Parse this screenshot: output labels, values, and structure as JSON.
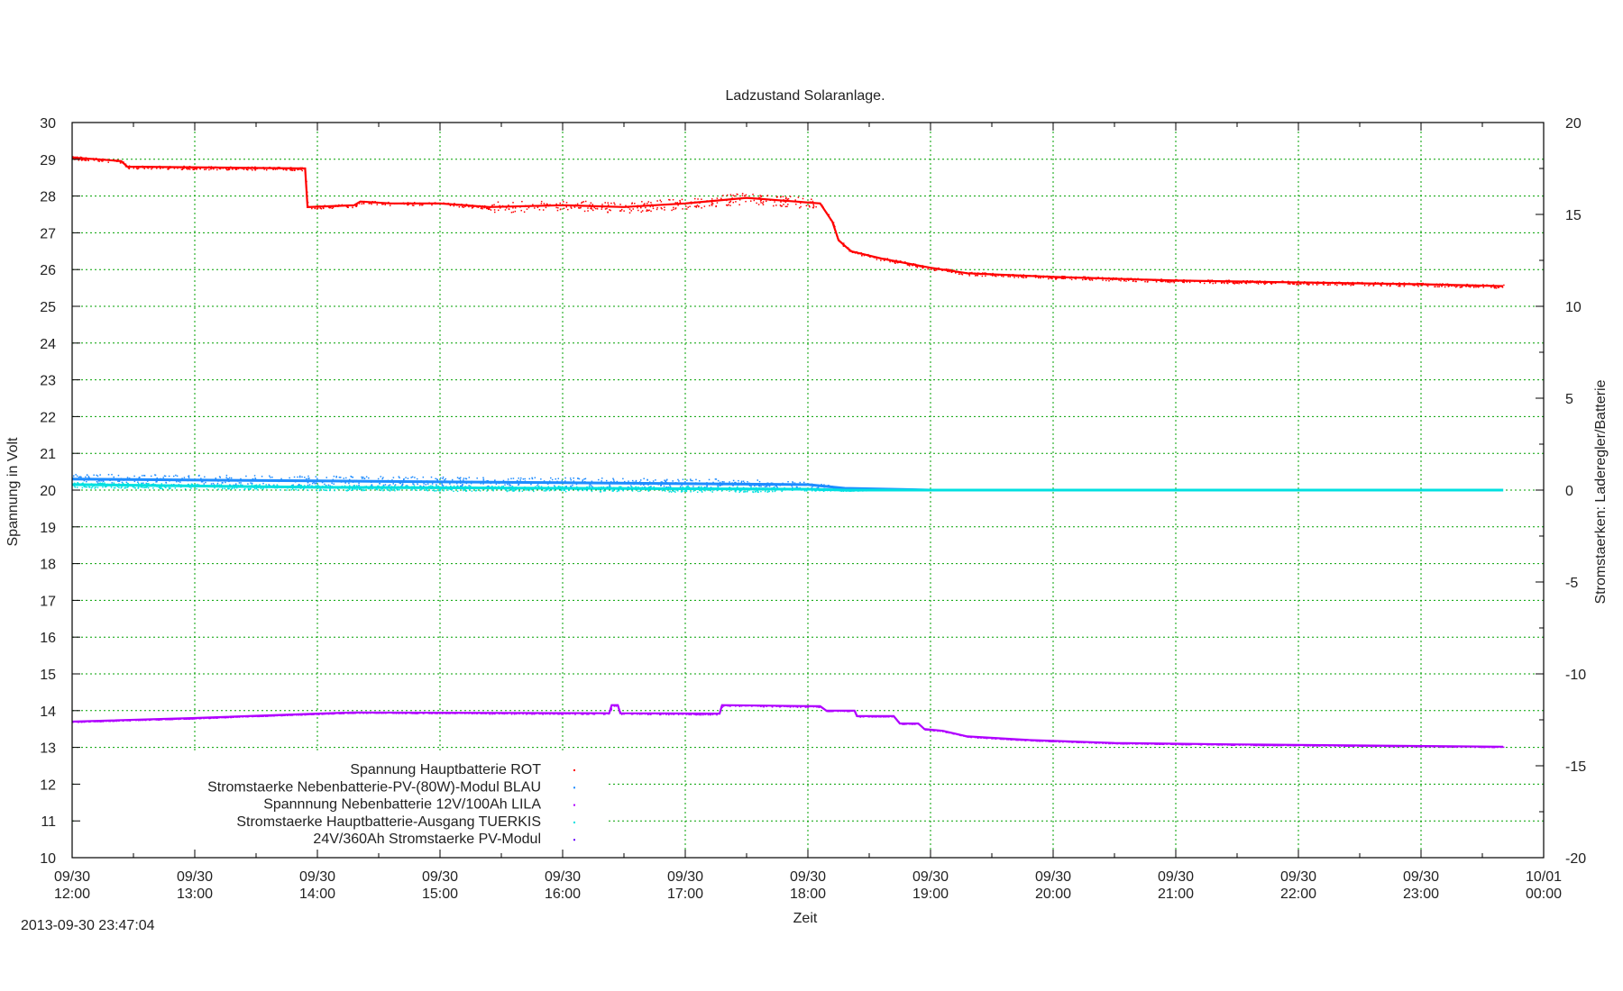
{
  "chart_data": {
    "type": "scatter",
    "title": "Ladzustand Solaranlage.",
    "xlabel": "Zeit",
    "ylabel": "Spannung in Volt",
    "y2label": "Stromstaerken: Laderegler/Batterie",
    "timestamp": "2013-09-30 23:47:04",
    "xlim": [
      12,
      24
    ],
    "ylim": [
      10,
      30
    ],
    "y2lim": [
      -20,
      20
    ],
    "grid": true,
    "legend_placement": "bottom-left",
    "x_ticks": [
      {
        "x": 12,
        "date": "09/30",
        "time": "12:00"
      },
      {
        "x": 13,
        "date": "09/30",
        "time": "13:00"
      },
      {
        "x": 14,
        "date": "09/30",
        "time": "14:00"
      },
      {
        "x": 15,
        "date": "09/30",
        "time": "15:00"
      },
      {
        "x": 16,
        "date": "09/30",
        "time": "16:00"
      },
      {
        "x": 17,
        "date": "09/30",
        "time": "17:00"
      },
      {
        "x": 18,
        "date": "09/30",
        "time": "18:00"
      },
      {
        "x": 19,
        "date": "09/30",
        "time": "19:00"
      },
      {
        "x": 20,
        "date": "09/30",
        "time": "20:00"
      },
      {
        "x": 21,
        "date": "09/30",
        "time": "21:00"
      },
      {
        "x": 22,
        "date": "09/30",
        "time": "22:00"
      },
      {
        "x": 23,
        "date": "09/30",
        "time": "23:00"
      },
      {
        "x": 24,
        "date": "10/01",
        "time": "00:00"
      }
    ],
    "y_ticks": [
      "10",
      "11",
      "12",
      "13",
      "14",
      "15",
      "16",
      "17",
      "18",
      "19",
      "20",
      "21",
      "22",
      "23",
      "24",
      "25",
      "26",
      "27",
      "28",
      "29",
      "30"
    ],
    "y2_ticks": [
      "-20",
      "-15",
      "-10",
      "-5",
      "0",
      "5",
      "10",
      "15",
      "20"
    ],
    "series": [
      {
        "name": "Spannung Hauptbatterie ROT",
        "axis": "y",
        "color": "#ff0000",
        "noise": 0.15,
        "points": [
          [
            12.0,
            29.05
          ],
          [
            12.4,
            28.95
          ],
          [
            12.45,
            28.8
          ],
          [
            13.9,
            28.75
          ],
          [
            13.92,
            27.7
          ],
          [
            14.3,
            27.75
          ],
          [
            14.35,
            27.85
          ],
          [
            14.6,
            27.8
          ],
          [
            15.0,
            27.8
          ],
          [
            15.4,
            27.7
          ],
          [
            16.0,
            27.75
          ],
          [
            16.5,
            27.7
          ],
          [
            17.0,
            27.8
          ],
          [
            17.5,
            27.95
          ],
          [
            17.9,
            27.85
          ],
          [
            18.1,
            27.8
          ],
          [
            18.2,
            27.3
          ],
          [
            18.25,
            26.8
          ],
          [
            18.35,
            26.5
          ],
          [
            18.6,
            26.3
          ],
          [
            19.0,
            26.05
          ],
          [
            19.3,
            25.9
          ],
          [
            20.0,
            25.8
          ],
          [
            21.0,
            25.7
          ],
          [
            22.0,
            25.65
          ],
          [
            23.0,
            25.6
          ],
          [
            23.67,
            25.55
          ]
        ]
      },
      {
        "name": "Stromstaerke Nebenbatterie-PV-(80W)-Modul BLAU",
        "axis": "y2",
        "color": "#1e8cff",
        "noise": 0.3,
        "points": [
          [
            12.0,
            0.6
          ],
          [
            14.0,
            0.5
          ],
          [
            16.0,
            0.4
          ],
          [
            18.0,
            0.3
          ],
          [
            18.3,
            0.1
          ],
          [
            19.0,
            0.0
          ],
          [
            23.67,
            0.0
          ]
        ]
      },
      {
        "name": "Spannnung Nebenbatterie 12V/100Ah LILA",
        "axis": "y",
        "color": "#b000ff",
        "noise": 0.02,
        "points": [
          [
            12.0,
            13.7
          ],
          [
            13.0,
            13.8
          ],
          [
            14.0,
            13.92
          ],
          [
            14.3,
            13.95
          ],
          [
            16.38,
            13.93
          ],
          [
            16.4,
            14.15
          ],
          [
            16.45,
            14.15
          ],
          [
            16.47,
            13.93
          ],
          [
            17.28,
            13.92
          ],
          [
            17.3,
            14.15
          ],
          [
            18.1,
            14.12
          ],
          [
            18.15,
            14.0
          ],
          [
            18.38,
            14.0
          ],
          [
            18.4,
            13.85
          ],
          [
            18.7,
            13.85
          ],
          [
            18.75,
            13.65
          ],
          [
            18.9,
            13.65
          ],
          [
            18.95,
            13.5
          ],
          [
            19.1,
            13.45
          ],
          [
            19.3,
            13.3
          ],
          [
            19.8,
            13.2
          ],
          [
            20.5,
            13.12
          ],
          [
            21.5,
            13.08
          ],
          [
            23.67,
            13.02
          ]
        ]
      },
      {
        "name": "Stromstaerke Hauptbatterie-Ausgang TUERKIS",
        "axis": "y2",
        "color": "#00e0e0",
        "noise": 0.15,
        "points": [
          [
            12.0,
            0.3
          ],
          [
            14.0,
            0.15
          ],
          [
            16.0,
            0.1
          ],
          [
            18.0,
            0.05
          ],
          [
            18.3,
            0.0
          ],
          [
            23.67,
            0.0
          ]
        ]
      },
      {
        "name": "24V/360Ah Stromstaerke PV-Modul",
        "axis": "y2",
        "color": "#6a00ff",
        "noise": 0.0,
        "points": []
      }
    ]
  }
}
